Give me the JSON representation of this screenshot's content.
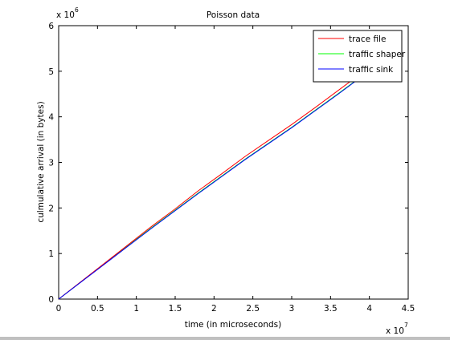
{
  "chart_data": {
    "type": "line",
    "title": "Poisson data",
    "xlabel": "time (in microseconds)",
    "ylabel": "culmulative arrival (in bytes)",
    "x_multiplier": "x 10",
    "x_multiplier_exp": "7",
    "y_multiplier": "x 10",
    "y_multiplier_exp": "6",
    "xlim": [
      0,
      45000000
    ],
    "ylim": [
      0,
      6000000
    ],
    "x_ticks": [
      0,
      5000000,
      10000000,
      15000000,
      20000000,
      25000000,
      30000000,
      35000000,
      40000000,
      45000000
    ],
    "x_tick_labels": [
      "0",
      "0.5",
      "1",
      "1.5",
      "2",
      "2.5",
      "3",
      "3.5",
      "4",
      "4.5"
    ],
    "y_ticks": [
      0,
      1000000,
      2000000,
      3000000,
      4000000,
      5000000,
      6000000
    ],
    "y_tick_labels": [
      "0",
      "1",
      "2",
      "3",
      "4",
      "5",
      "6"
    ],
    "grid": false,
    "legend_position": "top-right",
    "series": [
      {
        "name": "trace file",
        "color": "#ff0000",
        "x": [
          0,
          3000000,
          6000000,
          9000000,
          12000000,
          15000000,
          18000000,
          21000000,
          24000000,
          27000000,
          30000000,
          33000000,
          36000000,
          39000000,
          40000000
        ],
        "y": [
          0,
          400000,
          800000,
          1200000,
          1600000,
          1980000,
          2380000,
          2750000,
          3130000,
          3480000,
          3830000,
          4200000,
          4580000,
          4960000,
          5100000
        ]
      },
      {
        "name": "traffic shaper",
        "color": "#00ff00",
        "x": [
          0,
          3000000,
          6000000,
          9000000,
          12000000,
          15000000,
          18000000,
          21000000,
          24000000,
          27000000,
          30000000,
          33000000,
          36000000,
          39000000,
          40000000
        ],
        "y": [
          0,
          395000,
          790000,
          1180000,
          1570000,
          1950000,
          2330000,
          2700000,
          3070000,
          3420000,
          3770000,
          4140000,
          4510000,
          4890000,
          5030000
        ]
      },
      {
        "name": "traffic sink",
        "color": "#0000ff",
        "x": [
          0,
          3000000,
          6000000,
          9000000,
          12000000,
          15000000,
          18000000,
          21000000,
          24000000,
          27000000,
          30000000,
          33000000,
          36000000,
          39000000,
          40000000
        ],
        "y": [
          0,
          390000,
          780000,
          1170000,
          1560000,
          1940000,
          2320000,
          2690000,
          3060000,
          3410000,
          3760000,
          4130000,
          4500000,
          4880000,
          5020000
        ]
      }
    ]
  }
}
